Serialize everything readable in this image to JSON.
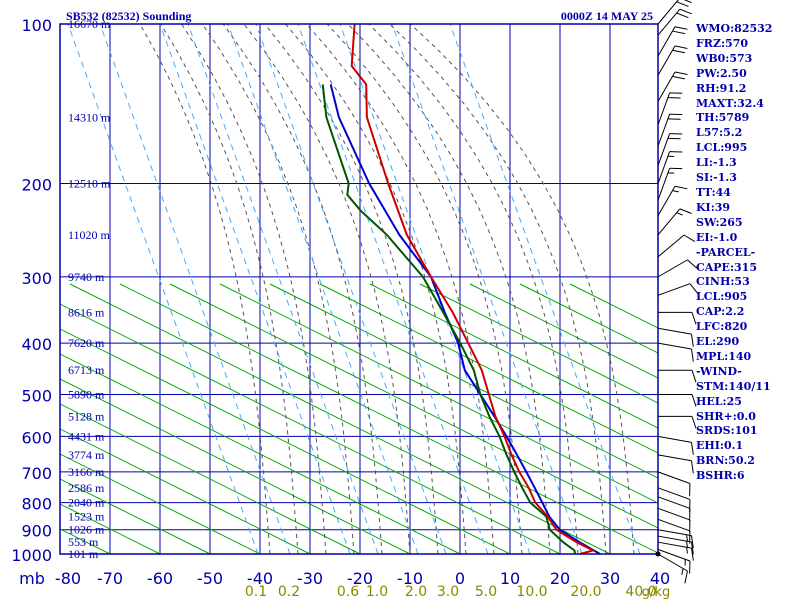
{
  "header": {
    "title": "SB532 (82532) Sounding",
    "datetime": "0000Z 14 MAY 25"
  },
  "indices": [
    "WMO:82532",
    "FRZ:570",
    "WB0:573",
    "PW:2.50",
    "RH:91.2",
    "MAXT:32.4",
    "TH:5789",
    "L57:5.2",
    "LCL:995",
    "LI:-1.3",
    "SI:-1.3",
    "TT:44",
    "KI:39",
    "SW:265",
    "EI:-1.0",
    "-PARCEL-",
    "CAPE:315",
    "CINH:53",
    "LCL:905",
    "CAP:2.2",
    "LFC:820",
    "EL:290",
    "MPL:140",
    "-WIND-",
    "STM:140/11",
    "HEL:25",
    "SHR+:0.0",
    "SRDS:101",
    "EHI:0.1",
    "BRN:50.2",
    "BSHR:6"
  ],
  "colors": {
    "frame": "#0000aa",
    "grid": "#0000aa",
    "dry_adiabat": "#00aa00",
    "moist_adiabat": "#555555",
    "mixing_ratio": "#44aaff",
    "temperature": "#cc0000",
    "dewpoint": "#005500",
    "parcel": "#0000cc",
    "mixing_labels": "#888800",
    "wind": "#000000"
  },
  "chart_data": {
    "type": "skew-t",
    "pressure_unit_label": "mb",
    "pressure_ticks": [
      100,
      200,
      300,
      400,
      500,
      600,
      700,
      800,
      900,
      1000
    ],
    "temperature_ticks": [
      -80,
      -70,
      -60,
      -50,
      -40,
      -30,
      -20,
      -10,
      0,
      10,
      20,
      30,
      40
    ],
    "height_labels": [
      {
        "p": 100,
        "text": "16670 m"
      },
      {
        "p": 150,
        "text": "14310 m"
      },
      {
        "p": 200,
        "text": "12510 m"
      },
      {
        "p": 250,
        "text": "11020 m"
      },
      {
        "p": 300,
        "text": "9740 m"
      },
      {
        "p": 350,
        "text": "8616 m"
      },
      {
        "p": 400,
        "text": "7620 m"
      },
      {
        "p": 450,
        "text": "6713 m"
      },
      {
        "p": 500,
        "text": "5890 m"
      },
      {
        "p": 550,
        "text": "5128 m"
      },
      {
        "p": 600,
        "text": "4431 m"
      },
      {
        "p": 650,
        "text": "3774 m"
      },
      {
        "p": 700,
        "text": "3166 m"
      },
      {
        "p": 750,
        "text": "2586 m"
      },
      {
        "p": 800,
        "text": "2040 m"
      },
      {
        "p": 850,
        "text": "1523 m"
      },
      {
        "p": 900,
        "text": "1026 m"
      },
      {
        "p": 950,
        "text": "553 m"
      },
      {
        "p": 1000,
        "text": "101 m"
      }
    ],
    "mixing_ratio_labels": [
      {
        "w": 0.1,
        "text": "0.1"
      },
      {
        "w": 0.2,
        "text": "0.2"
      },
      {
        "w": 0.6,
        "text": "0.6"
      },
      {
        "w": 1.0,
        "text": "1.0"
      },
      {
        "w": 2.0,
        "text": "2.0"
      },
      {
        "w": 3.0,
        "text": "3.0"
      },
      {
        "w": 5.0,
        "text": "5.0"
      },
      {
        "w": 10.0,
        "text": "10.0"
      },
      {
        "w": 20.0,
        "text": "20.0"
      },
      {
        "w": 40.0,
        "text": "40.0"
      }
    ],
    "mixing_ratio_unit": "g/kg",
    "temperature": [
      [
        1000,
        24.0
      ],
      [
        985,
        26.2
      ],
      [
        950,
        22.0
      ],
      [
        900,
        16.5
      ],
      [
        850,
        13.3
      ],
      [
        800,
        9.2
      ],
      [
        750,
        6.2
      ],
      [
        700,
        2.5
      ],
      [
        650,
        -1.0
      ],
      [
        600,
        -4.5
      ],
      [
        550,
        -8.6
      ],
      [
        500,
        -12.4
      ],
      [
        450,
        -16.6
      ],
      [
        400,
        -22.4
      ],
      [
        350,
        -29.0
      ],
      [
        300,
        -37.4
      ],
      [
        250,
        -47.0
      ],
      [
        200,
        -56.6
      ],
      [
        150,
        -68.4
      ],
      [
        130,
        -72.3
      ],
      [
        120,
        -77.3
      ],
      [
        100,
        -81.5
      ]
    ],
    "dewpoint": [
      [
        1000,
        23.0
      ],
      [
        985,
        22.5
      ],
      [
        950,
        19.3
      ],
      [
        900,
        15.2
      ],
      [
        850,
        13.0
      ],
      [
        800,
        8.2
      ],
      [
        750,
        4.9
      ],
      [
        700,
        1.5
      ],
      [
        650,
        -2.0
      ],
      [
        600,
        -5.5
      ],
      [
        550,
        -9.8
      ],
      [
        500,
        -14.1
      ],
      [
        450,
        -18.2
      ],
      [
        400,
        -24.0
      ],
      [
        350,
        -30.9
      ],
      [
        300,
        -39.0
      ],
      [
        250,
        -51.0
      ],
      [
        225,
        -59.0
      ],
      [
        210,
        -63.5
      ],
      [
        200,
        -64.5
      ],
      [
        150,
        -76.5
      ],
      [
        130,
        -81.0
      ]
    ],
    "parcel": [
      [
        1000,
        28.0
      ],
      [
        950,
        22.6
      ],
      [
        900,
        17.2
      ],
      [
        850,
        13.6
      ],
      [
        800,
        10.6
      ],
      [
        750,
        7.4
      ],
      [
        700,
        3.9
      ],
      [
        650,
        0.1
      ],
      [
        600,
        -4.1
      ],
      [
        550,
        -8.8
      ],
      [
        500,
        -14.1
      ],
      [
        450,
        -20.0
      ],
      [
        400,
        -24.4
      ],
      [
        350,
        -30.6
      ],
      [
        300,
        -37.4
      ],
      [
        250,
        -48.5
      ],
      [
        200,
        -60.4
      ],
      [
        150,
        -74.0
      ],
      [
        130,
        -79.4
      ]
    ],
    "wind_barbs": [
      {
        "p": 1000,
        "dir": 120,
        "spd": 15
      },
      {
        "p": 980,
        "dir": 110,
        "spd": 15
      },
      {
        "p": 950,
        "dir": 100,
        "spd": 15
      },
      {
        "p": 925,
        "dir": 100,
        "spd": 15
      },
      {
        "p": 900,
        "dir": 100,
        "spd": 15
      },
      {
        "p": 860,
        "dir": 110,
        "spd": 10
      },
      {
        "p": 820,
        "dir": 110,
        "spd": 10
      },
      {
        "p": 780,
        "dir": 110,
        "spd": 10
      },
      {
        "p": 750,
        "dir": 110,
        "spd": 10
      },
      {
        "p": 700,
        "dir": 110,
        "spd": 10
      },
      {
        "p": 650,
        "dir": 100,
        "spd": 10
      },
      {
        "p": 600,
        "dir": 100,
        "spd": 10
      },
      {
        "p": 550,
        "dir": 90,
        "spd": 10
      },
      {
        "p": 500,
        "dir": 90,
        "spd": 10
      },
      {
        "p": 450,
        "dir": 90,
        "spd": 10
      },
      {
        "p": 400,
        "dir": 100,
        "spd": 10
      },
      {
        "p": 375,
        "dir": 100,
        "spd": 10
      },
      {
        "p": 350,
        "dir": 90,
        "spd": 10
      },
      {
        "p": 325,
        "dir": 70,
        "spd": 10
      },
      {
        "p": 300,
        "dir": 60,
        "spd": 10
      },
      {
        "p": 275,
        "dir": 50,
        "spd": 10
      },
      {
        "p": 250,
        "dir": 40,
        "spd": 15
      },
      {
        "p": 230,
        "dir": 30,
        "spd": 15
      },
      {
        "p": 215,
        "dir": 20,
        "spd": 15
      },
      {
        "p": 200,
        "dir": 20,
        "spd": 15
      },
      {
        "p": 185,
        "dir": 20,
        "spd": 20
      },
      {
        "p": 170,
        "dir": 20,
        "spd": 20
      },
      {
        "p": 155,
        "dir": 20,
        "spd": 20
      },
      {
        "p": 140,
        "dir": 30,
        "spd": 20
      },
      {
        "p": 125,
        "dir": 30,
        "spd": 20
      },
      {
        "p": 115,
        "dir": 30,
        "spd": 20
      },
      {
        "p": 105,
        "dir": 40,
        "spd": 20
      },
      {
        "p": 100,
        "dir": 40,
        "spd": 20
      }
    ]
  }
}
